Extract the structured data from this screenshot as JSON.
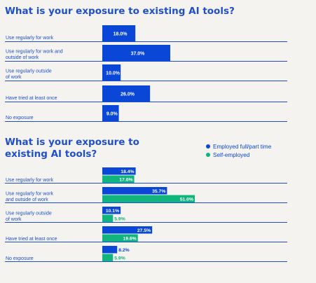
{
  "chart_data": [
    {
      "type": "bar",
      "orientation": "horizontal",
      "title": "What is your exposure to existing AI tools?",
      "categories": [
        "Use regularly for work",
        "Use regularly for work and outside of work",
        "Use regularly outside of work",
        "Have tried at least once",
        "No exposure"
      ],
      "category_lines": [
        [
          "Use regularly for work"
        ],
        [
          "Use regularly for work and",
          "outside of work"
        ],
        [
          "Use regularly outside",
          "of work"
        ],
        [
          "Have tried at least once"
        ],
        [
          "No exposure"
        ]
      ],
      "values": [
        18.0,
        37.0,
        10.0,
        26.0,
        9.0
      ],
      "value_labels": [
        "18.0%",
        "37.0%",
        "10.0%",
        "26.0%",
        "9.0%"
      ],
      "unit": "%",
      "color": "#0a47d6",
      "grid": false
    },
    {
      "type": "bar",
      "orientation": "horizontal",
      "title": "What is your exposure to existing AI tools?",
      "categories": [
        "Use regularly for work",
        "Use regularly for work and outside of work",
        "Use regularly outside of work",
        "Have tried at least once",
        "No exposure"
      ],
      "category_lines": [
        [
          "Use regularly for work"
        ],
        [
          "Use regularly for work",
          "and outside of work"
        ],
        [
          "Use regularly outside",
          "of work"
        ],
        [
          "Have tried at least once"
        ],
        [
          "No exposure"
        ]
      ],
      "series": [
        {
          "name": "Employed full/part time",
          "color": "#0a47d6",
          "values": [
            18.4,
            35.7,
            10.1,
            27.5,
            8.2
          ],
          "value_labels": [
            "18.4%",
            "35.7%",
            "10.1%",
            "27.5%",
            "8.2%"
          ]
        },
        {
          "name": "Self-employed",
          "color": "#0fb57c",
          "values": [
            17.6,
            51.0,
            5.9,
            19.6,
            5.9
          ],
          "value_labels": [
            "17.6%",
            "51.0%",
            "5.9%",
            "19.6%",
            "5.9%"
          ]
        }
      ],
      "unit": "%",
      "legend": "top-right",
      "grid": false
    }
  ]
}
